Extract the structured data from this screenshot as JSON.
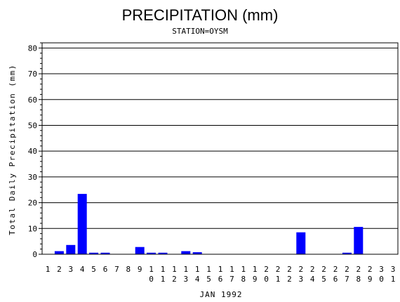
{
  "chart_data": {
    "type": "bar",
    "title": "PRECIPITATION (mm)",
    "subtitle": "STATION=OYSM",
    "xlabel": "JAN 1992",
    "ylabel": "Total Daily Precipitation (mm)",
    "ylim": [
      0,
      82
    ],
    "yticks": [
      0,
      10,
      20,
      30,
      40,
      50,
      60,
      70,
      80
    ],
    "grid": true,
    "bar_color": "#0000ff",
    "categories": [
      "1",
      "2",
      "3",
      "4",
      "5",
      "6",
      "7",
      "8",
      "9",
      "10",
      "11",
      "12",
      "13",
      "14",
      "15",
      "16",
      "17",
      "18",
      "19",
      "20",
      "21",
      "22",
      "23",
      "24",
      "25",
      "26",
      "27",
      "28",
      "29",
      "30",
      "31"
    ],
    "values": [
      0,
      1.2,
      3.6,
      23.4,
      0.6,
      0.6,
      0,
      0,
      2.8,
      0.6,
      0.6,
      0,
      1.2,
      0.8,
      0,
      0,
      0,
      0,
      0,
      0,
      0,
      0,
      8.5,
      0,
      0,
      0,
      0.6,
      10.6,
      0,
      0,
      0
    ]
  }
}
